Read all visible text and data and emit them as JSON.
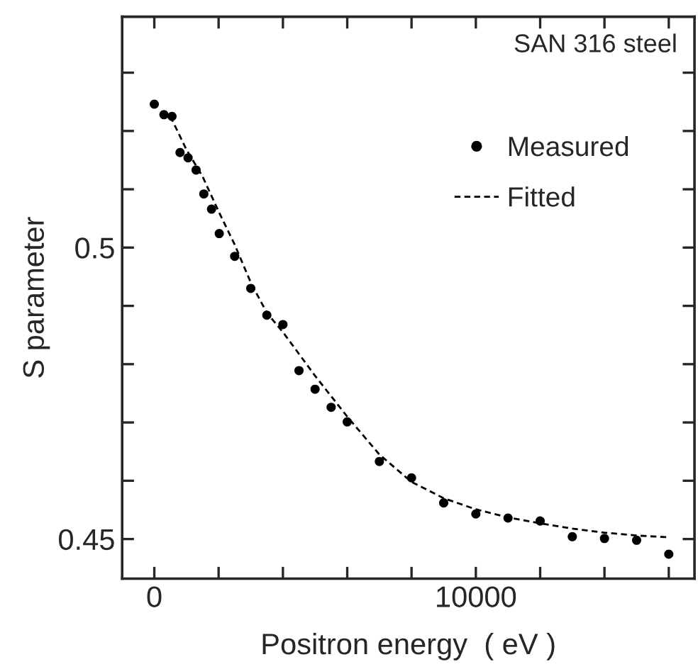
{
  "chart_data": {
    "type": "scatter",
    "xlabel": "Positron energy  ( eV )",
    "ylabel": "S parameter",
    "annotations": [
      "SAN 316 steel"
    ],
    "xlim": [
      -1000,
      16800
    ],
    "ylim": [
      0.4432,
      0.5396
    ],
    "xticks": [
      0,
      {
        "value": 2000,
        "label": null
      },
      {
        "value": 4000,
        "label": null
      },
      {
        "value": 6000,
        "label": null
      },
      {
        "value": 8000,
        "label": null
      },
      10000,
      {
        "value": 12000,
        "label": null
      },
      {
        "value": 14000,
        "label": null
      },
      {
        "value": 16000,
        "label": null
      }
    ],
    "yticks": [
      0.45,
      {
        "value": 0.46,
        "label": null
      },
      {
        "value": 0.47,
        "label": null
      },
      {
        "value": 0.48,
        "label": null
      },
      {
        "value": 0.49,
        "label": null
      },
      0.5,
      {
        "value": 0.51,
        "label": null
      },
      {
        "value": 0.52,
        "label": null
      },
      {
        "value": 0.53,
        "label": null
      }
    ],
    "grid": false,
    "legend": "right",
    "series": [
      {
        "name": "Measured",
        "marker": "circle",
        "color": "#000000",
        "x": [
          0,
          300,
          550,
          800,
          1050,
          1300,
          1540,
          1780,
          2020,
          2500,
          3000,
          3500,
          4000,
          4500,
          5000,
          5500,
          6000,
          7000,
          8000,
          9000,
          10000,
          11000,
          12000,
          13000,
          14000,
          15000,
          16000
        ],
        "values": [
          0.5246,
          0.5228,
          0.5225,
          0.5163,
          0.5154,
          0.5133,
          0.5092,
          0.5066,
          0.5024,
          0.4985,
          0.493,
          0.4884,
          0.4868,
          0.4789,
          0.4757,
          0.4726,
          0.4701,
          0.4633,
          0.4605,
          0.4562,
          0.4543,
          0.4536,
          0.4531,
          0.4504,
          0.4501,
          0.4498,
          0.4474
        ]
      },
      {
        "name": "Fitted",
        "type": "line",
        "line_style": "dashed",
        "marker": "none",
        "color": "#000000",
        "x": [
          500,
          1000,
          1500,
          2000,
          2500,
          3000,
          3500,
          4000,
          5000,
          6000,
          7000,
          8000,
          9000,
          10000,
          11000,
          12000,
          13000,
          14000,
          15000,
          16000
        ],
        "values": [
          0.5225,
          0.5168,
          0.5122,
          0.5062,
          0.5005,
          0.494,
          0.4888,
          0.4855,
          0.478,
          0.471,
          0.4645,
          0.4598,
          0.457,
          0.4551,
          0.4537,
          0.4527,
          0.4518,
          0.4511,
          0.4506,
          0.4503
        ]
      }
    ]
  }
}
